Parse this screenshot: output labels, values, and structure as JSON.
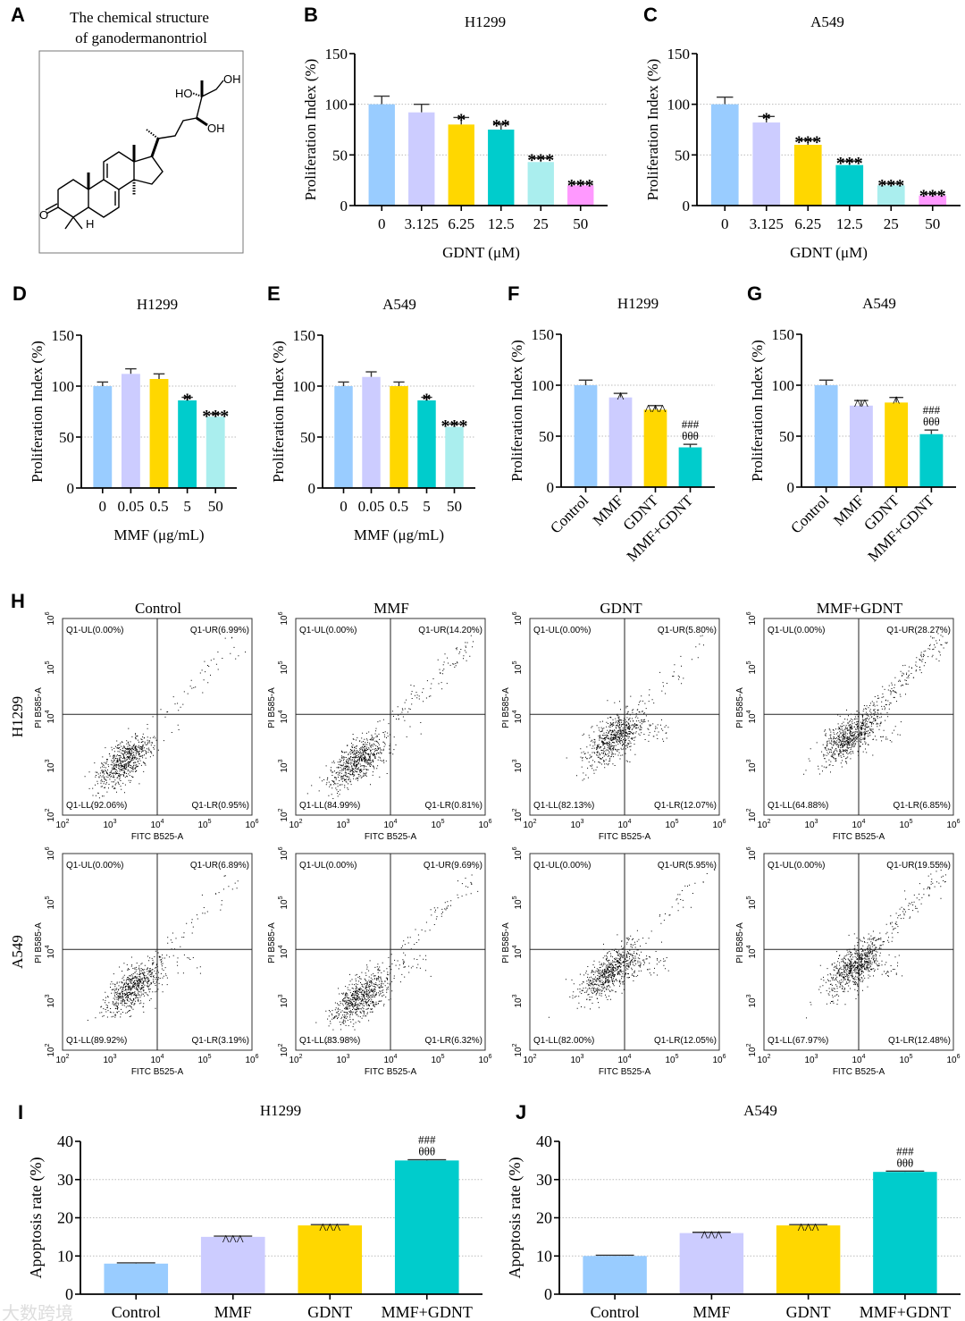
{
  "panel_a": {
    "letter": "A",
    "title_line1": "The chemical structure",
    "title_line2": "of ganodermanontriol",
    "atoms": [
      "OH",
      "HO",
      "OH",
      "O",
      "H"
    ]
  },
  "watermark": "大数跨境",
  "chart_data": [
    {
      "id": "B",
      "letter": "B",
      "type": "bar",
      "title": "H1299",
      "xlabel": "GDNT (μM)",
      "ylabel": "Proliferation Index (%)",
      "ylim": [
        0,
        150
      ],
      "yticks": [
        0,
        50,
        100,
        150
      ],
      "grid": true,
      "categories": [
        "0",
        "3.125",
        "6.25",
        "12.5",
        "25",
        "50"
      ],
      "values": [
        100,
        92,
        80,
        75,
        43,
        20
      ],
      "errors": [
        8,
        8,
        7,
        6,
        4,
        2
      ],
      "annotations": [
        "",
        "",
        "*",
        "**",
        "***",
        "***"
      ],
      "colors": [
        "#99ccff",
        "#ccccff",
        "#ffd700",
        "#00cccc",
        "#aaeeee",
        "#ff99ff"
      ]
    },
    {
      "id": "C",
      "letter": "C",
      "type": "bar",
      "title": "A549",
      "xlabel": "GDNT (μM)",
      "ylabel": "Proliferation Index (%)",
      "ylim": [
        0,
        150
      ],
      "yticks": [
        0,
        50,
        100,
        150
      ],
      "grid": true,
      "categories": [
        "0",
        "3.125",
        "6.25",
        "12.5",
        "25",
        "50"
      ],
      "values": [
        100,
        82,
        60,
        40,
        20,
        10
      ],
      "errors": [
        7,
        6,
        5,
        4,
        2,
        2
      ],
      "annotations": [
        "",
        "*",
        "***",
        "***",
        "***",
        "***"
      ],
      "colors": [
        "#99ccff",
        "#ccccff",
        "#ffd700",
        "#00cccc",
        "#aaeeee",
        "#ff99ff"
      ]
    },
    {
      "id": "D",
      "letter": "D",
      "type": "bar",
      "title": "H1299",
      "xlabel": "MMF (μg/mL)",
      "ylabel": "Proliferation Index (%)",
      "ylim": [
        0,
        150
      ],
      "yticks": [
        0,
        50,
        100,
        150
      ],
      "grid": true,
      "categories": [
        "0",
        "0.05",
        "0.5",
        "5",
        "50"
      ],
      "values": [
        100,
        112,
        107,
        86,
        70
      ],
      "errors": [
        4,
        5,
        5,
        3,
        3
      ],
      "annotations": [
        "",
        "",
        "",
        "*",
        "***"
      ],
      "colors": [
        "#99ccff",
        "#ccccff",
        "#ffd700",
        "#00cccc",
        "#aaeeee"
      ]
    },
    {
      "id": "E",
      "letter": "E",
      "type": "bar",
      "title": "A549",
      "xlabel": "MMF (μg/mL)",
      "ylabel": "Proliferation Index (%)",
      "ylim": [
        0,
        150
      ],
      "yticks": [
        0,
        50,
        100,
        150
      ],
      "grid": true,
      "categories": [
        "0",
        "0.05",
        "0.5",
        "5",
        "50"
      ],
      "values": [
        100,
        109,
        100,
        86,
        60
      ],
      "errors": [
        4,
        5,
        4,
        3,
        3
      ],
      "annotations": [
        "",
        "",
        "",
        "*",
        "***"
      ],
      "colors": [
        "#99ccff",
        "#ccccff",
        "#ffd700",
        "#00cccc",
        "#aaeeee"
      ]
    },
    {
      "id": "F",
      "letter": "F",
      "type": "bar",
      "title": "H1299",
      "xlabel": "",
      "ylabel": "Proliferation Index (%)",
      "ylim": [
        0,
        150
      ],
      "yticks": [
        0,
        50,
        100,
        150
      ],
      "grid": true,
      "categories": [
        "Control",
        "MMF",
        "GDNT",
        "MMF+GDNT"
      ],
      "values": [
        100,
        88,
        76,
        39
      ],
      "errors": [
        5,
        4,
        4,
        3
      ],
      "annotations": [
        "",
        "^",
        "^^^",
        "###|θθθ"
      ],
      "colors": [
        "#99ccff",
        "#ccccff",
        "#ffd700",
        "#00cccc"
      ]
    },
    {
      "id": "G",
      "letter": "G",
      "type": "bar",
      "title": "A549",
      "xlabel": "",
      "ylabel": "Proliferation Index (%)",
      "ylim": [
        0,
        150
      ],
      "yticks": [
        0,
        50,
        100,
        150
      ],
      "grid": true,
      "categories": [
        "Control",
        "MMF",
        "GDNT",
        "MMF+GDNT"
      ],
      "values": [
        100,
        80,
        83,
        52
      ],
      "errors": [
        5,
        5,
        5,
        4
      ],
      "annotations": [
        "",
        "^^",
        "^",
        "###|θθθ"
      ],
      "colors": [
        "#99ccff",
        "#ccccff",
        "#ffd700",
        "#00cccc"
      ]
    },
    {
      "id": "H",
      "letter": "H",
      "type": "scatter",
      "xlabel": "FITC B525-A",
      "ylabel": "PI B585-A",
      "axis_exponents": [
        2,
        3,
        4,
        5,
        6
      ],
      "columns": [
        "Control",
        "MMF",
        "GDNT",
        "MMF+GDNT"
      ],
      "rows": [
        "H1299",
        "A549"
      ],
      "plots": [
        {
          "row": "H1299",
          "col": "Control",
          "UL": "Q1-UL(0.00%)",
          "UR": "Q1-UR(6.99%)",
          "LL": "Q1-LL(92.06%)",
          "LR": "Q1-LR(0.95%)"
        },
        {
          "row": "H1299",
          "col": "MMF",
          "UL": "Q1-UL(0.00%)",
          "UR": "Q1-UR(14.20%)",
          "LL": "Q1-LL(84.99%)",
          "LR": "Q1-LR(0.81%)"
        },
        {
          "row": "H1299",
          "col": "GDNT",
          "UL": "Q1-UL(0.00%)",
          "UR": "Q1-UR(5.80%)",
          "LL": "Q1-LL(82.13%)",
          "LR": "Q1-LR(12.07%)"
        },
        {
          "row": "H1299",
          "col": "MMF+GDNT",
          "UL": "Q1-UL(0.00%)",
          "UR": "Q1-UR(28.27%)",
          "LL": "Q1-LL(64.88%)",
          "LR": "Q1-LR(6.85%)"
        },
        {
          "row": "A549",
          "col": "Control",
          "UL": "Q1-UL(0.00%)",
          "UR": "Q1-UR(6.89%)",
          "LL": "Q1-LL(89.92%)",
          "LR": "Q1-LR(3.19%)"
        },
        {
          "row": "A549",
          "col": "MMF",
          "UL": "Q1-UL(0.00%)",
          "UR": "Q1-UR(9.69%)",
          "LL": "Q1-LL(83.98%)",
          "LR": "Q1-LR(6.32%)"
        },
        {
          "row": "A549",
          "col": "GDNT",
          "UL": "Q1-UL(0.00%)",
          "UR": "Q1-UR(5.95%)",
          "LL": "Q1-LL(82.00%)",
          "LR": "Q1-LR(12.05%)"
        },
        {
          "row": "A549",
          "col": "MMF+GDNT",
          "UL": "Q1-UL(0.00%)",
          "UR": "Q1-UR(19.55%)",
          "LL": "Q1-LL(67.97%)",
          "LR": "Q1-LR(12.48%)"
        }
      ]
    },
    {
      "id": "I",
      "letter": "I",
      "type": "bar",
      "title": "H1299",
      "xlabel": "",
      "ylabel": "Apoptosis rate (%)",
      "ylim": [
        0,
        40
      ],
      "yticks": [
        0,
        10,
        20,
        30,
        40
      ],
      "grid": true,
      "categories": [
        "Control",
        "MMF",
        "GDNT",
        "MMF+GDNT"
      ],
      "values": [
        8,
        15,
        18,
        35
      ],
      "errors": [
        0.2,
        0.2,
        0.2,
        0.2
      ],
      "annotations": [
        "",
        "^^^",
        "^^^",
        "###|θθθ"
      ],
      "colors": [
        "#99ccff",
        "#ccccff",
        "#ffd700",
        "#00cccc"
      ]
    },
    {
      "id": "J",
      "letter": "J",
      "type": "bar",
      "title": "A549",
      "xlabel": "",
      "ylabel": "Apoptosis rate (%)",
      "ylim": [
        0,
        40
      ],
      "yticks": [
        0,
        10,
        20,
        30,
        40
      ],
      "grid": true,
      "categories": [
        "Control",
        "MMF",
        "GDNT",
        "MMF+GDNT"
      ],
      "values": [
        10,
        16,
        18,
        32
      ],
      "errors": [
        0.2,
        0.2,
        0.2,
        0.2
      ],
      "annotations": [
        "",
        "^^^",
        "^^^",
        "###|θθθ"
      ],
      "colors": [
        "#99ccff",
        "#ccccff",
        "#ffd700",
        "#00cccc"
      ]
    }
  ]
}
